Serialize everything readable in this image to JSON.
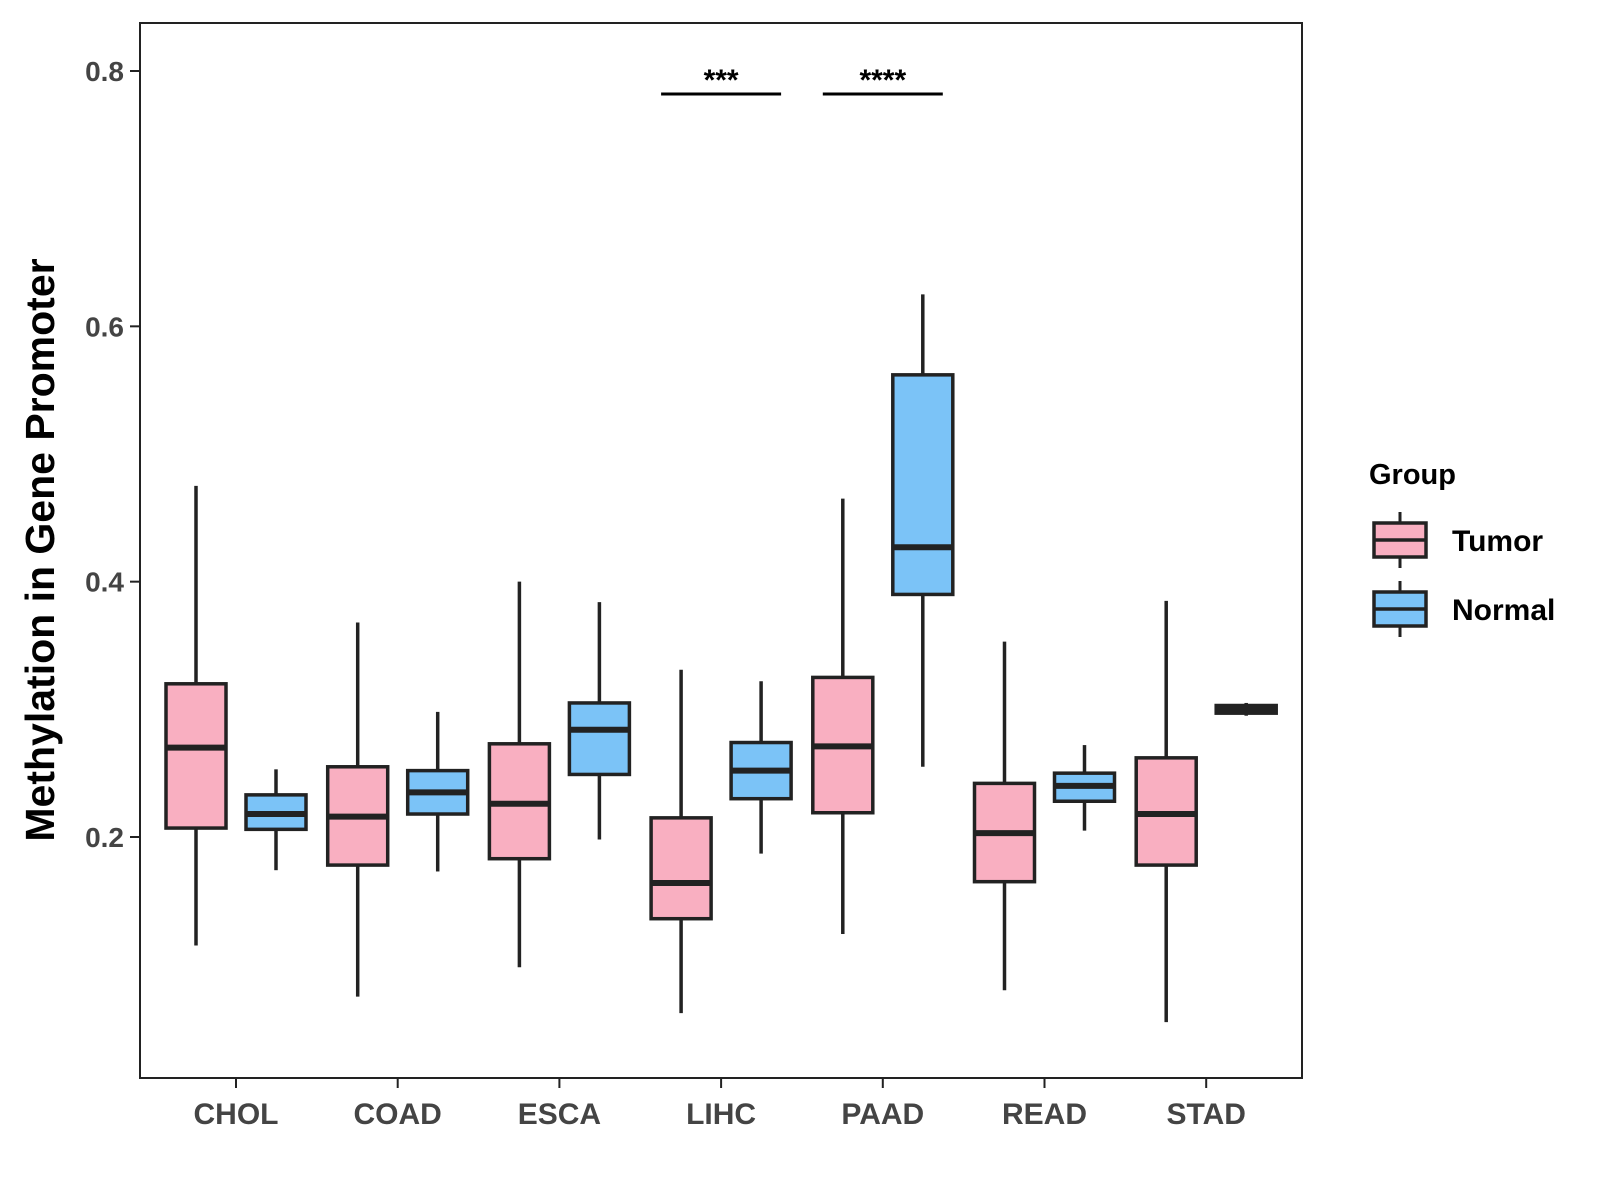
{
  "chart_data": {
    "type": "boxplot",
    "title": "",
    "xlabel": "",
    "ylabel": "Methylation in Gene Promoter",
    "ylim": [
      0.02,
      0.84
    ],
    "yticks": [
      0.2,
      0.4,
      0.6,
      0.8
    ],
    "ytick_labels": [
      "0.2",
      "0.4",
      "0.6",
      "0.8"
    ],
    "categories": [
      "CHOL",
      "COAD",
      "ESCA",
      "LIHC",
      "PAAD",
      "READ",
      "STAD"
    ],
    "legend": {
      "title": "Group",
      "position": "right",
      "entries": [
        {
          "name": "Tumor",
          "color": "#F9AFC1"
        },
        {
          "name": "Normal",
          "color": "#7BC3F7"
        }
      ]
    },
    "series": [
      {
        "name": "Tumor",
        "color": "#F9AFC1",
        "boxes": [
          {
            "category": "CHOL",
            "min": 0.115,
            "q1": 0.207,
            "median": 0.27,
            "q3": 0.32,
            "max": 0.475
          },
          {
            "category": "COAD",
            "min": 0.075,
            "q1": 0.178,
            "median": 0.216,
            "q3": 0.255,
            "max": 0.368
          },
          {
            "category": "ESCA",
            "min": 0.098,
            "q1": 0.183,
            "median": 0.226,
            "q3": 0.273,
            "max": 0.4
          },
          {
            "category": "LIHC",
            "min": 0.062,
            "q1": 0.136,
            "median": 0.164,
            "q3": 0.215,
            "max": 0.331
          },
          {
            "category": "PAAD",
            "min": 0.124,
            "q1": 0.219,
            "median": 0.271,
            "q3": 0.325,
            "max": 0.465
          },
          {
            "category": "READ",
            "min": 0.08,
            "q1": 0.165,
            "median": 0.203,
            "q3": 0.242,
            "max": 0.353
          },
          {
            "category": "STAD",
            "min": 0.055,
            "q1": 0.178,
            "median": 0.218,
            "q3": 0.262,
            "max": 0.385
          }
        ]
      },
      {
        "name": "Normal",
        "color": "#7BC3F7",
        "boxes": [
          {
            "category": "CHOL",
            "min": 0.174,
            "q1": 0.206,
            "median": 0.218,
            "q3": 0.233,
            "max": 0.253
          },
          {
            "category": "COAD",
            "min": 0.173,
            "q1": 0.218,
            "median": 0.235,
            "q3": 0.252,
            "max": 0.298
          },
          {
            "category": "ESCA",
            "min": 0.198,
            "q1": 0.249,
            "median": 0.284,
            "q3": 0.305,
            "max": 0.384
          },
          {
            "category": "LIHC",
            "min": 0.187,
            "q1": 0.23,
            "median": 0.252,
            "q3": 0.274,
            "max": 0.322
          },
          {
            "category": "PAAD",
            "min": 0.255,
            "q1": 0.39,
            "median": 0.427,
            "q3": 0.562,
            "max": 0.625
          },
          {
            "category": "READ",
            "min": 0.205,
            "q1": 0.228,
            "median": 0.24,
            "q3": 0.25,
            "max": 0.272
          },
          {
            "category": "STAD",
            "min": 0.295,
            "q1": 0.297,
            "median": 0.3,
            "q3": 0.303,
            "max": 0.305
          }
        ]
      }
    ],
    "annotations": [
      {
        "category": "LIHC",
        "label": "***",
        "y": 0.782
      },
      {
        "category": "PAAD",
        "label": "****",
        "y": 0.782
      }
    ]
  }
}
